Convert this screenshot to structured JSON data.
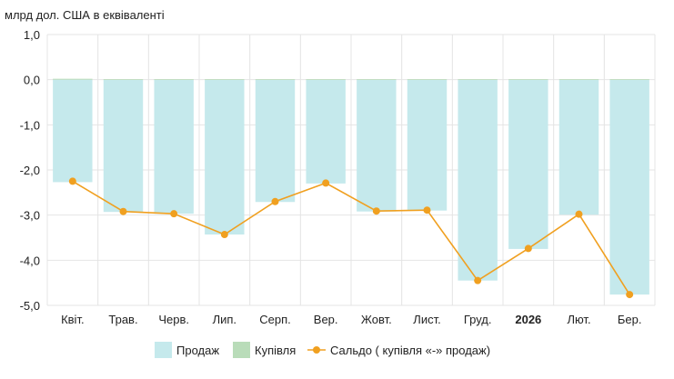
{
  "chart_data": {
    "type": "bar",
    "unit_label": "млрд дол. США в еквіваленті",
    "categories": [
      "Квіт.",
      "Трав.",
      "Черв.",
      "Лип.",
      "Серп.",
      "Вер.",
      "Жовт.",
      "Лист.",
      "Груд.",
      "2026",
      "Лют.",
      "Бер."
    ],
    "bold_categories": [
      "2026"
    ],
    "ylim": [
      -5.0,
      1.0
    ],
    "yticks": [
      1.0,
      0.0,
      -1.0,
      -2.0,
      -3.0,
      -4.0,
      -5.0
    ],
    "ytick_labels": [
      "1,0",
      "0,0",
      "-1,0",
      "-2,0",
      "-3,0",
      "-4,0",
      "-5,0"
    ],
    "grid": true,
    "legend_position": "bottom",
    "series": [
      {
        "name": "Продаж",
        "kind": "bar",
        "color": "#c5e9ec",
        "values": [
          -2.27,
          -2.93,
          -2.97,
          -3.43,
          -2.71,
          -2.3,
          -2.92,
          -2.9,
          -4.45,
          -3.75,
          -2.99,
          -4.76
        ]
      },
      {
        "name": "Купівля",
        "kind": "bar",
        "color": "#b9dcb9",
        "values": [
          0.02,
          0.01,
          0.01,
          0.01,
          0.01,
          0.01,
          0.01,
          0.01,
          0.01,
          0.01,
          0.01,
          0.01
        ]
      },
      {
        "name": "Сальдо ( купівля «-» продаж)",
        "kind": "line",
        "color": "#f0a020",
        "values": [
          -2.25,
          -2.92,
          -2.97,
          -3.43,
          -2.7,
          -2.29,
          -2.91,
          -2.89,
          -4.45,
          -3.74,
          -2.98,
          -4.76
        ]
      }
    ]
  }
}
